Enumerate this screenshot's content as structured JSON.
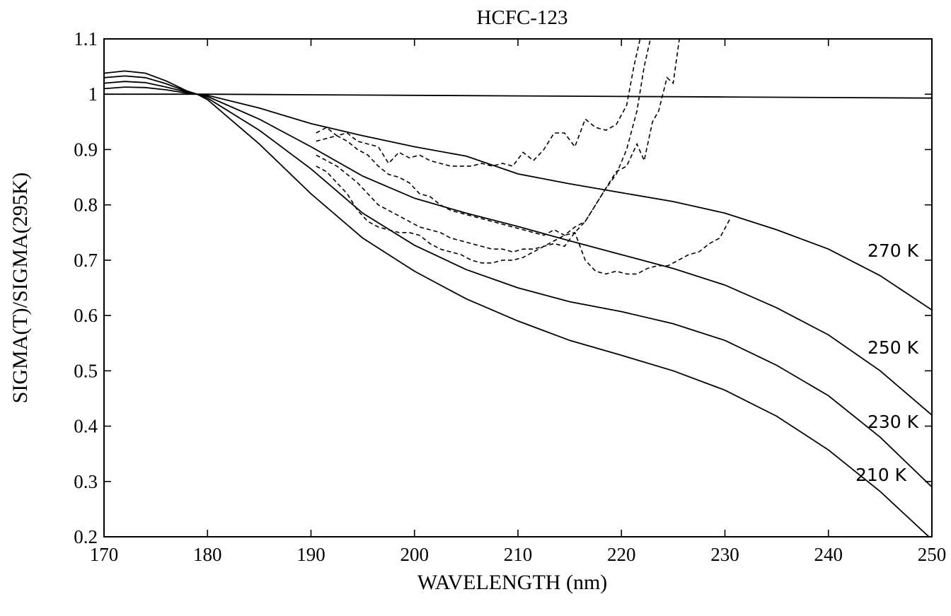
{
  "chart_data": {
    "type": "line",
    "title": "HCFC-123",
    "xlabel": "WAVELENGTH (nm)",
    "ylabel": "SIGMA(T)/SIGMA(295K)",
    "xlim": [
      170,
      250
    ],
    "ylim": [
      0.2,
      1.1
    ],
    "xticks": [
      "170",
      "180",
      "190",
      "200",
      "210",
      "220",
      "230",
      "240",
      "250"
    ],
    "yticks": [
      "0.2",
      "0.3",
      "0.4",
      "0.5",
      "0.6",
      "0.7",
      "0.8",
      "0.9",
      "1",
      "1.1"
    ],
    "grid": false,
    "series": [
      {
        "name": "",
        "style": "solid",
        "x": [
          170,
          180,
          190,
          200,
          210,
          220,
          230,
          240,
          250
        ],
        "y": [
          1.0,
          1.0,
          0.999,
          0.998,
          0.997,
          0.996,
          0.995,
          0.994,
          0.993
        ]
      },
      {
        "name": "270 K",
        "style": "solid",
        "x": [
          170,
          172,
          174,
          176,
          178,
          179,
          180,
          185,
          190,
          195,
          200,
          205,
          210,
          215,
          220,
          225,
          230,
          235,
          240,
          245,
          250
        ],
        "y": [
          1.01,
          1.013,
          1.012,
          1.008,
          1.002,
          1.0,
          0.998,
          0.975,
          0.947,
          0.925,
          0.905,
          0.888,
          0.856,
          0.838,
          0.822,
          0.806,
          0.785,
          0.755,
          0.72,
          0.672,
          0.61
        ]
      },
      {
        "name": "250 K",
        "style": "solid",
        "x": [
          170,
          172,
          174,
          176,
          178,
          179,
          180,
          185,
          190,
          195,
          200,
          205,
          210,
          215,
          220,
          225,
          230,
          235,
          240,
          245,
          250
        ],
        "y": [
          1.02,
          1.023,
          1.021,
          1.013,
          1.004,
          1.0,
          0.996,
          0.955,
          0.905,
          0.852,
          0.812,
          0.785,
          0.761,
          0.735,
          0.71,
          0.685,
          0.655,
          0.614,
          0.565,
          0.5,
          0.42
        ]
      },
      {
        "name": "230 K",
        "style": "solid",
        "x": [
          170,
          172,
          174,
          176,
          178,
          179,
          180,
          185,
          190,
          195,
          200,
          205,
          210,
          215,
          220,
          225,
          230,
          235,
          240,
          245,
          250
        ],
        "y": [
          1.03,
          1.033,
          1.03,
          1.019,
          1.005,
          1.0,
          0.993,
          0.935,
          0.865,
          0.785,
          0.727,
          0.683,
          0.65,
          0.625,
          0.607,
          0.585,
          0.555,
          0.51,
          0.455,
          0.38,
          0.29
        ]
      },
      {
        "name": "210 K",
        "style": "solid",
        "x": [
          170,
          172,
          174,
          176,
          178,
          179,
          180,
          185,
          190,
          195,
          200,
          205,
          210,
          215,
          220,
          225,
          230,
          235,
          240,
          245,
          250
        ],
        "y": [
          1.038,
          1.042,
          1.038,
          1.024,
          1.006,
          1.0,
          0.99,
          0.91,
          0.82,
          0.74,
          0.68,
          0.63,
          0.59,
          0.555,
          0.528,
          0.5,
          0.465,
          0.418,
          0.357,
          0.282,
          0.195
        ]
      },
      {
        "name": "",
        "style": "dashed",
        "x": [
          190.5,
          191.5,
          192.5,
          193.5,
          194.5,
          195.5,
          196.5,
          197.5,
          198.5,
          199.5,
          200.5,
          201.5,
          202.5,
          203.5,
          204.5,
          205.5,
          206.5,
          207.5,
          208.5,
          209.5,
          210.5,
          211.5,
          212.5,
          213.5,
          214.5,
          215.5,
          216.5,
          217.5,
          218.5,
          219.5,
          220.5,
          221.2,
          221.8
        ],
        "y": [
          0.93,
          0.94,
          0.925,
          0.93,
          0.915,
          0.91,
          0.905,
          0.875,
          0.895,
          0.885,
          0.89,
          0.88,
          0.875,
          0.87,
          0.87,
          0.87,
          0.875,
          0.87,
          0.875,
          0.87,
          0.895,
          0.88,
          0.9,
          0.93,
          0.93,
          0.905,
          0.955,
          0.94,
          0.935,
          0.945,
          0.98,
          1.05,
          1.1
        ]
      },
      {
        "name": "",
        "style": "dashed",
        "x": [
          190.5,
          191.5,
          192.5,
          193.5,
          194.5,
          195.5,
          196.5,
          197.5,
          198.5,
          199.5,
          200.5,
          201.5,
          202.5,
          203.5,
          204.5,
          205.5,
          206.5,
          207.5,
          208.5,
          209.5,
          210.5,
          211.5,
          212.5,
          213.5,
          214.5,
          215.5,
          216.5,
          217.5,
          218.5,
          219.5,
          220.5,
          221.5,
          222.2,
          222.8
        ],
        "y": [
          0.915,
          0.92,
          0.925,
          0.915,
          0.9,
          0.89,
          0.87,
          0.855,
          0.85,
          0.84,
          0.82,
          0.815,
          0.8,
          0.79,
          0.785,
          0.78,
          0.775,
          0.77,
          0.765,
          0.76,
          0.755,
          0.75,
          0.745,
          0.755,
          0.745,
          0.76,
          0.77,
          0.8,
          0.83,
          0.855,
          0.9,
          0.97,
          1.05,
          1.1
        ]
      },
      {
        "name": "",
        "style": "dashed",
        "x": [
          190.5,
          191.5,
          192.5,
          193.5,
          194.5,
          195.5,
          196.5,
          197.5,
          198.5,
          199.5,
          200.5,
          201.5,
          202.5,
          203.5,
          204.5,
          205.5,
          206.5,
          207.5,
          208.5,
          209.5,
          210.5,
          211.5,
          212.5,
          213.5,
          214.5,
          215.5,
          216.5,
          217.5,
          218.5,
          219.5,
          220.5,
          221.5,
          222.2,
          223.0,
          223.6,
          224.4,
          225.0,
          225.6
        ],
        "y": [
          0.89,
          0.88,
          0.87,
          0.855,
          0.84,
          0.82,
          0.8,
          0.79,
          0.78,
          0.77,
          0.76,
          0.755,
          0.75,
          0.74,
          0.735,
          0.73,
          0.725,
          0.72,
          0.72,
          0.715,
          0.72,
          0.72,
          0.725,
          0.73,
          0.725,
          0.75,
          0.77,
          0.8,
          0.83,
          0.86,
          0.87,
          0.91,
          0.88,
          0.95,
          0.97,
          1.03,
          1.02,
          1.1
        ]
      },
      {
        "name": "",
        "style": "dashed",
        "x": [
          190.5,
          191.5,
          192.5,
          193.5,
          194.5,
          195.5,
          196.5,
          197.5,
          198.5,
          199.5,
          200.5,
          201.5,
          202.5,
          203.5,
          204.5,
          205.5,
          206.5,
          207.5,
          208.5,
          209.5,
          210.5,
          211.5,
          212.5,
          213.5,
          214.5,
          215.5,
          216.5,
          217.5,
          218.5,
          219.5,
          220.5,
          221.5,
          222.5,
          223.5,
          224.5,
          225.5,
          226.5,
          227.5,
          228.5,
          229.5,
          230.5
        ],
        "y": [
          0.87,
          0.86,
          0.84,
          0.82,
          0.79,
          0.77,
          0.76,
          0.755,
          0.75,
          0.75,
          0.745,
          0.73,
          0.72,
          0.715,
          0.71,
          0.7,
          0.695,
          0.695,
          0.7,
          0.7,
          0.705,
          0.715,
          0.725,
          0.735,
          0.745,
          0.75,
          0.7,
          0.68,
          0.675,
          0.68,
          0.675,
          0.675,
          0.685,
          0.69,
          0.69,
          0.7,
          0.71,
          0.715,
          0.73,
          0.74,
          0.775
        ]
      }
    ],
    "annotations": [
      "270 K",
      "250 K",
      "230 K",
      "210 K"
    ]
  }
}
